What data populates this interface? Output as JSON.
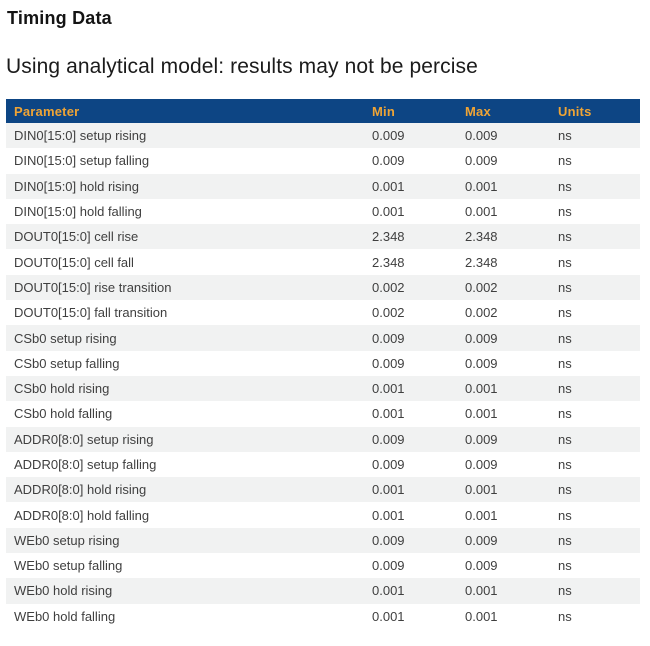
{
  "page": {
    "title": "Timing Data",
    "subtitle": "Using analytical model: results may not be percise"
  },
  "colors": {
    "table_header_bg": "#0D4584",
    "table_header_text": "#EFA435",
    "row_alt_bg": "#F1F2F2",
    "row_bg": "#FFFFFF",
    "body_text": "#3F3F3F"
  },
  "table": {
    "columns": [
      "Parameter",
      "Min",
      "Max",
      "Units"
    ],
    "rows": [
      [
        "DIN0[15:0] setup rising",
        "0.009",
        "0.009",
        "ns"
      ],
      [
        "DIN0[15:0] setup falling",
        "0.009",
        "0.009",
        "ns"
      ],
      [
        "DIN0[15:0] hold rising",
        "0.001",
        "0.001",
        "ns"
      ],
      [
        "DIN0[15:0] hold falling",
        "0.001",
        "0.001",
        "ns"
      ],
      [
        "DOUT0[15:0] cell rise",
        "2.348",
        "2.348",
        "ns"
      ],
      [
        "DOUT0[15:0] cell fall",
        "2.348",
        "2.348",
        "ns"
      ],
      [
        "DOUT0[15:0] rise transition",
        "0.002",
        "0.002",
        "ns"
      ],
      [
        "DOUT0[15:0] fall transition",
        "0.002",
        "0.002",
        "ns"
      ],
      [
        "CSb0 setup rising",
        "0.009",
        "0.009",
        "ns"
      ],
      [
        "CSb0 setup falling",
        "0.009",
        "0.009",
        "ns"
      ],
      [
        "CSb0 hold rising",
        "0.001",
        "0.001",
        "ns"
      ],
      [
        "CSb0 hold falling",
        "0.001",
        "0.001",
        "ns"
      ],
      [
        "ADDR0[8:0] setup rising",
        "0.009",
        "0.009",
        "ns"
      ],
      [
        "ADDR0[8:0] setup falling",
        "0.009",
        "0.009",
        "ns"
      ],
      [
        "ADDR0[8:0] hold rising",
        "0.001",
        "0.001",
        "ns"
      ],
      [
        "ADDR0[8:0] hold falling",
        "0.001",
        "0.001",
        "ns"
      ],
      [
        "WEb0 setup rising",
        "0.009",
        "0.009",
        "ns"
      ],
      [
        "WEb0 setup falling",
        "0.009",
        "0.009",
        "ns"
      ],
      [
        "WEb0 hold rising",
        "0.001",
        "0.001",
        "ns"
      ],
      [
        "WEb0 hold falling",
        "0.001",
        "0.001",
        "ns"
      ]
    ]
  }
}
